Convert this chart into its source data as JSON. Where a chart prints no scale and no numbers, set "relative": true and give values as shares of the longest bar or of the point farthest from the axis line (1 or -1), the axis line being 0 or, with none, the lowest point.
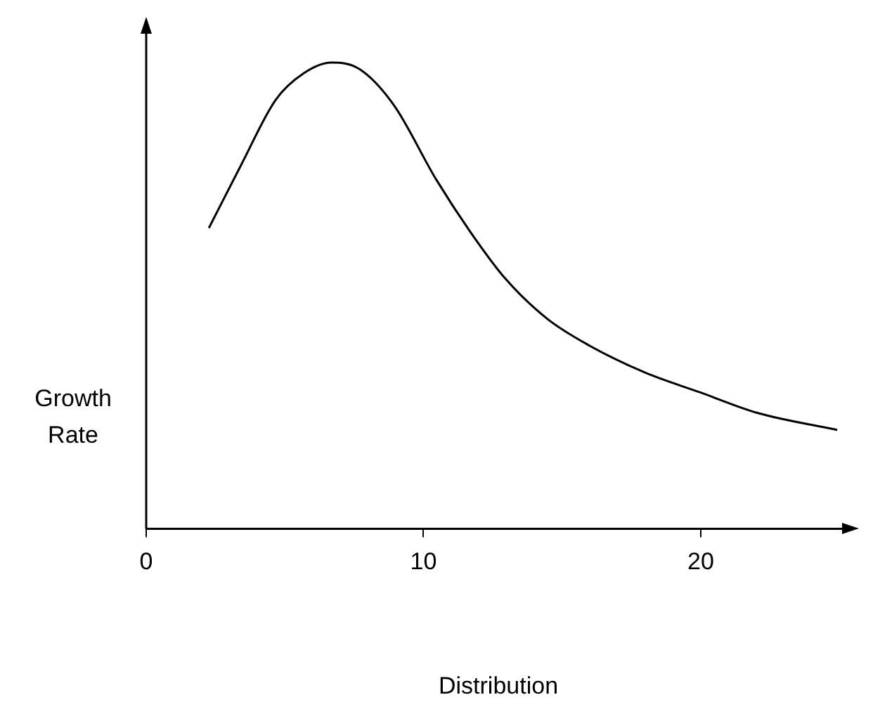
{
  "chart_data": {
    "type": "line",
    "relative": true,
    "xlabel": "Distribution",
    "ylabel": "Growth Rate",
    "xlim": [
      0,
      25.4
    ],
    "xticks": [
      0,
      10,
      20
    ],
    "grid": false,
    "legend": false,
    "marker": "none",
    "line_style": "solid",
    "series": [
      {
        "color": "#000000",
        "x": [
          2.26,
          3.42,
          4.67,
          5.68,
          6.68,
          7.69,
          8.94,
          10.45,
          11.7,
          12.96,
          14.47,
          15.98,
          17.99,
          20,
          22.01,
          24.92
        ],
        "values": [
          0.645,
          0.78,
          0.92,
          0.977,
          1,
          0.986,
          0.908,
          0.75,
          0.636,
          0.536,
          0.45,
          0.393,
          0.335,
          0.292,
          0.249,
          0.212
        ]
      }
    ]
  }
}
